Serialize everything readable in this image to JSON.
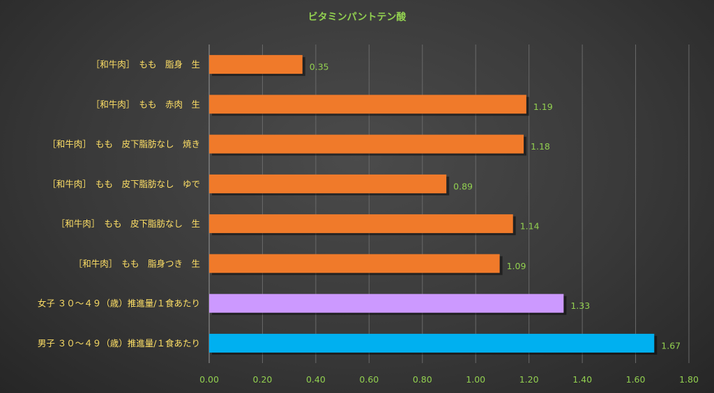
{
  "chart_data": {
    "type": "bar",
    "orientation": "horizontal",
    "title": "ビタミンパントテン酸",
    "categories": [
      "［和牛肉］　もも　脂身　生",
      "［和牛肉］　もも　赤肉　生",
      "［和牛肉］　もも　皮下脂肪なし　焼き",
      "［和牛肉］　もも　皮下脂肪なし　ゆで",
      "［和牛肉］　もも　皮下脂肪なし　生",
      "［和牛肉］　もも　脂身つき　生",
      "女子 ３０～４９（歳）推進量/１食あたり",
      "男子 ３０～４９（歳）推進量/１食あたり"
    ],
    "values": [
      0.35,
      1.19,
      1.18,
      0.89,
      1.14,
      1.09,
      1.33,
      1.67
    ],
    "value_labels": [
      "0.35",
      "1.19",
      "1.18",
      "0.89",
      "1.14",
      "1.09",
      "1.33",
      "1.67"
    ],
    "bar_colors": [
      "#f07a2a",
      "#f07a2a",
      "#f07a2a",
      "#f07a2a",
      "#f07a2a",
      "#f07a2a",
      "#cc99ff",
      "#00b0f0"
    ],
    "xlim": [
      0,
      1.8
    ],
    "x_ticks": [
      0,
      0.2,
      0.4,
      0.6,
      0.8,
      1.0,
      1.2,
      1.4,
      1.6,
      1.8
    ],
    "x_tick_labels": [
      "0.00",
      "0.20",
      "0.40",
      "0.60",
      "0.80",
      "1.00",
      "1.20",
      "1.40",
      "1.60",
      "1.80"
    ],
    "xlabel": "",
    "ylabel": "",
    "grid": true,
    "legend": "none",
    "colors": {
      "title": "#92d050",
      "category_label": "#ffe066",
      "tick_label": "#92d050",
      "value_label": "#92d050",
      "gridline": "#6a6a6a",
      "axis_line": "#9a9a9a"
    }
  }
}
